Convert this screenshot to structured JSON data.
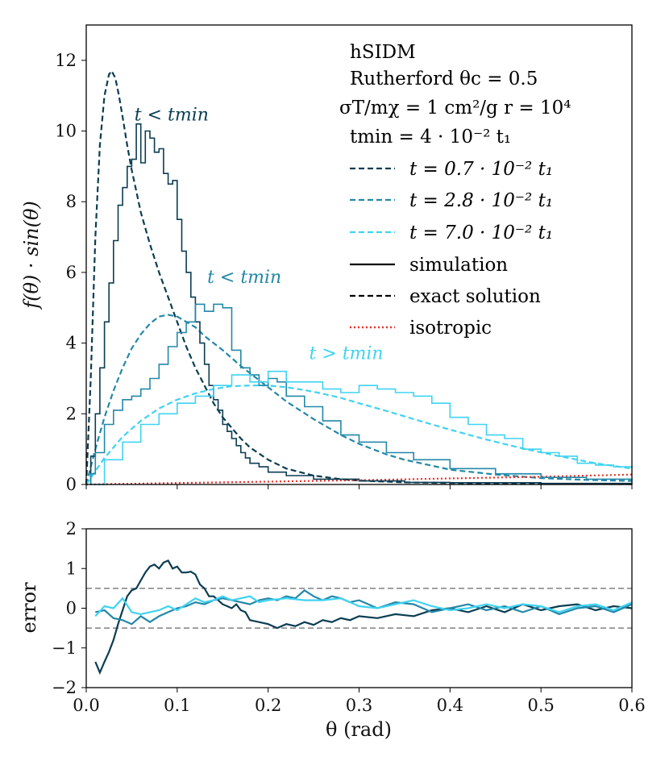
{
  "chart_data": [
    {
      "type": "line",
      "panel": "main",
      "title": "",
      "xlabel": "",
      "ylabel": "f(θ) · sin(θ)",
      "xlim": [
        0,
        0.6
      ],
      "ylim": [
        0,
        13
      ],
      "xticks": [
        0.0,
        0.1,
        0.2,
        0.3,
        0.4,
        0.5,
        0.6
      ],
      "yticks": [
        0,
        2,
        4,
        6,
        8,
        10,
        12
      ],
      "ytick_labels": [
        "0",
        "2",
        "4",
        "6",
        "8",
        "10",
        "12"
      ],
      "colors": {
        "dark": "#0b3d52",
        "mid": "#2388a8",
        "light": "#3fd3f2",
        "isotropic": "#e8312a"
      },
      "legend": {
        "title_lines": [
          "hSIDM",
          "Rutherford   θc = 0.5",
          "σT/mχ = 1 cm²/g   r = 10⁴",
          "tmin = 4 · 10⁻² t₁"
        ],
        "entries": [
          {
            "label": "t = 0.7 · 10⁻² t₁",
            "style": "dashed",
            "color": "#0b3d52"
          },
          {
            "label": "t = 2.8 · 10⁻² t₁",
            "style": "dashed",
            "color": "#2388a8"
          },
          {
            "label": "t = 7.0 · 10⁻² t₁",
            "style": "dashed",
            "color": "#3fd3f2"
          },
          {
            "label": "simulation",
            "style": "solid",
            "color": "#000000"
          },
          {
            "label": "exact solution",
            "style": "dashed",
            "color": "#000000"
          },
          {
            "label": "isotropic",
            "style": "dotted",
            "color": "#e8312a"
          }
        ]
      },
      "annotations": [
        {
          "text": "t < tmin",
          "x": 0.053,
          "y": 10.3,
          "color": "#0b3d52"
        },
        {
          "text": "t < tmin",
          "x": 0.133,
          "y": 5.7,
          "color": "#2388a8"
        },
        {
          "text": "t > tmin",
          "x": 0.245,
          "y": 3.55,
          "color": "#3fd3f2"
        }
      ],
      "series": [
        {
          "name": "exact t=0.7e-2 t1",
          "kind": "dashed",
          "color": "#0b3d52",
          "x": [
            0.0,
            0.005,
            0.01,
            0.015,
            0.02,
            0.025,
            0.028,
            0.032,
            0.036,
            0.04,
            0.045,
            0.05,
            0.055,
            0.06,
            0.07,
            0.08,
            0.09,
            0.1,
            0.11,
            0.12,
            0.13,
            0.14,
            0.15,
            0.16,
            0.17,
            0.18,
            0.2,
            0.22,
            0.25,
            0.28,
            0.3,
            0.35,
            0.4,
            0.45,
            0.5,
            0.55,
            0.6
          ],
          "y": [
            0.0,
            3.0,
            7.0,
            9.6,
            11.0,
            11.6,
            11.7,
            11.5,
            11.0,
            10.4,
            9.6,
            8.9,
            8.3,
            7.7,
            6.8,
            6.0,
            5.3,
            4.6,
            3.9,
            3.3,
            2.8,
            2.3,
            1.9,
            1.6,
            1.3,
            1.05,
            0.7,
            0.45,
            0.25,
            0.15,
            0.11,
            0.06,
            0.04,
            0.03,
            0.02,
            0.015,
            0.01
          ]
        },
        {
          "name": "exact t=2.8e-2 t1",
          "kind": "dashed",
          "color": "#2388a8",
          "x": [
            0.0,
            0.01,
            0.02,
            0.03,
            0.04,
            0.05,
            0.06,
            0.07,
            0.08,
            0.09,
            0.1,
            0.11,
            0.12,
            0.13,
            0.15,
            0.17,
            0.2,
            0.22,
            0.25,
            0.28,
            0.3,
            0.33,
            0.35,
            0.4,
            0.45,
            0.5,
            0.55,
            0.6
          ],
          "y": [
            0.0,
            1.0,
            1.9,
            2.65,
            3.3,
            3.85,
            4.25,
            4.55,
            4.75,
            4.8,
            4.75,
            4.6,
            4.45,
            4.2,
            3.8,
            3.35,
            2.75,
            2.35,
            1.85,
            1.4,
            1.15,
            0.85,
            0.7,
            0.42,
            0.28,
            0.18,
            0.13,
            0.1
          ]
        },
        {
          "name": "exact t=7.0e-2 t1",
          "kind": "dashed",
          "color": "#3fd3f2",
          "x": [
            0.0,
            0.02,
            0.04,
            0.06,
            0.08,
            0.1,
            0.12,
            0.14,
            0.16,
            0.18,
            0.2,
            0.22,
            0.24,
            0.26,
            0.28,
            0.3,
            0.33,
            0.36,
            0.4,
            0.44,
            0.48,
            0.52,
            0.56,
            0.6
          ],
          "y": [
            0.0,
            0.75,
            1.35,
            1.8,
            2.15,
            2.4,
            2.58,
            2.7,
            2.78,
            2.8,
            2.8,
            2.75,
            2.67,
            2.57,
            2.45,
            2.3,
            2.08,
            1.85,
            1.55,
            1.27,
            1.02,
            0.8,
            0.6,
            0.45
          ]
        },
        {
          "name": "isotropic",
          "kind": "dotted",
          "color": "#e8312a",
          "x": [
            0.0,
            0.1,
            0.2,
            0.3,
            0.4,
            0.5,
            0.6
          ],
          "y": [
            0.0,
            0.04,
            0.08,
            0.12,
            0.17,
            0.22,
            0.28
          ]
        },
        {
          "name": "simulation t=0.7e-2 t1",
          "kind": "step",
          "color": "#0b3d52",
          "x": [
            0.005,
            0.01,
            0.015,
            0.02,
            0.025,
            0.03,
            0.035,
            0.04,
            0.045,
            0.05,
            0.055,
            0.06,
            0.065,
            0.07,
            0.075,
            0.08,
            0.085,
            0.09,
            0.095,
            0.1,
            0.105,
            0.11,
            0.115,
            0.12,
            0.125,
            0.13,
            0.135,
            0.14,
            0.145,
            0.15,
            0.155,
            0.16,
            0.165,
            0.17,
            0.175,
            0.18,
            0.19,
            0.2,
            0.22,
            0.25,
            0.3,
            0.35,
            0.4,
            0.5,
            0.6
          ],
          "y": [
            0.8,
            2.0,
            3.3,
            4.6,
            5.7,
            6.9,
            7.9,
            8.4,
            9.0,
            9.2,
            10.2,
            9.1,
            10.0,
            9.8,
            9.4,
            9.5,
            8.8,
            8.5,
            8.6,
            7.5,
            6.6,
            6.0,
            5.3,
            4.6,
            4.0,
            3.4,
            2.8,
            2.4,
            2.1,
            1.7,
            1.5,
            1.3,
            1.1,
            0.9,
            0.75,
            0.6,
            0.5,
            0.35,
            0.25,
            0.15,
            0.1,
            0.06,
            0.05,
            0.03,
            0.02
          ]
        },
        {
          "name": "simulation t=2.8e-2 t1",
          "kind": "step",
          "color": "#2388a8",
          "x": [
            0.005,
            0.01,
            0.02,
            0.03,
            0.04,
            0.05,
            0.06,
            0.07,
            0.08,
            0.09,
            0.1,
            0.11,
            0.12,
            0.13,
            0.14,
            0.15,
            0.16,
            0.17,
            0.18,
            0.19,
            0.2,
            0.21,
            0.22,
            0.24,
            0.26,
            0.28,
            0.3,
            0.33,
            0.36,
            0.4,
            0.45,
            0.5,
            0.55,
            0.6
          ],
          "y": [
            0.3,
            0.9,
            1.7,
            2.1,
            2.4,
            2.5,
            2.7,
            3.0,
            3.4,
            3.9,
            4.3,
            4.6,
            5.1,
            4.9,
            5.1,
            5.0,
            3.8,
            3.3,
            3.1,
            2.8,
            3.0,
            2.9,
            2.5,
            2.2,
            1.8,
            1.4,
            1.2,
            0.9,
            0.7,
            0.45,
            0.3,
            0.2,
            0.15,
            0.1
          ]
        },
        {
          "name": "simulation t=7.0e-2 t1",
          "kind": "step",
          "color": "#3fd3f2",
          "x": [
            0.005,
            0.02,
            0.04,
            0.06,
            0.08,
            0.1,
            0.12,
            0.14,
            0.16,
            0.18,
            0.2,
            0.22,
            0.24,
            0.26,
            0.28,
            0.3,
            0.32,
            0.34,
            0.36,
            0.38,
            0.4,
            0.42,
            0.44,
            0.46,
            0.48,
            0.5,
            0.52,
            0.54,
            0.56,
            0.58,
            0.6
          ],
          "y": [
            0.0,
            0.7,
            1.2,
            1.7,
            2.0,
            2.3,
            2.5,
            2.8,
            3.1,
            2.9,
            3.2,
            2.9,
            2.9,
            2.7,
            2.6,
            2.8,
            2.7,
            2.6,
            2.5,
            2.3,
            1.9,
            1.7,
            1.4,
            1.3,
            1.0,
            0.9,
            0.8,
            0.6,
            0.55,
            0.5,
            0.45
          ]
        }
      ]
    },
    {
      "type": "line",
      "panel": "error",
      "title": "",
      "xlabel": "θ (rad)",
      "ylabel": "error",
      "xlim": [
        0,
        0.6
      ],
      "ylim": [
        -2,
        2
      ],
      "xticks": [
        0.0,
        0.1,
        0.2,
        0.3,
        0.4,
        0.5,
        0.6
      ],
      "xtick_labels": [
        "0.0",
        "0.1",
        "0.2",
        "0.3",
        "0.4",
        "0.5",
        "0.6"
      ],
      "yticks": [
        -2,
        -1,
        0,
        1,
        2
      ],
      "ytick_labels": [
        "−2",
        "−1",
        "0",
        "1",
        "2"
      ],
      "reference_lines": [
        0.5,
        -0.5
      ],
      "reference_color": "#808080",
      "series": [
        {
          "name": "error t=0.7e-2 t1",
          "color": "#0b3d52",
          "x": [
            0.01,
            0.015,
            0.02,
            0.025,
            0.03,
            0.035,
            0.04,
            0.045,
            0.05,
            0.055,
            0.06,
            0.065,
            0.07,
            0.075,
            0.08,
            0.085,
            0.09,
            0.095,
            0.1,
            0.105,
            0.11,
            0.115,
            0.12,
            0.125,
            0.13,
            0.135,
            0.14,
            0.145,
            0.15,
            0.155,
            0.16,
            0.165,
            0.17,
            0.175,
            0.18,
            0.19,
            0.2,
            0.21,
            0.22,
            0.23,
            0.24,
            0.25,
            0.26,
            0.27,
            0.28,
            0.29,
            0.3,
            0.32,
            0.34,
            0.36,
            0.38,
            0.4,
            0.42,
            0.44,
            0.46,
            0.48,
            0.5,
            0.52,
            0.54,
            0.56,
            0.58,
            0.6
          ],
          "y": [
            -1.35,
            -1.62,
            -1.35,
            -1.1,
            -0.8,
            -0.4,
            -0.05,
            0.3,
            0.45,
            0.5,
            0.7,
            0.9,
            1.05,
            1.1,
            1.0,
            1.15,
            1.2,
            1.0,
            1.05,
            0.9,
            0.9,
            0.92,
            0.85,
            0.6,
            0.5,
            0.3,
            0.3,
            0.2,
            0.1,
            0.05,
            0.0,
            0.1,
            -0.05,
            -0.1,
            -0.3,
            -0.35,
            -0.4,
            -0.5,
            -0.4,
            -0.45,
            -0.35,
            -0.42,
            -0.3,
            -0.35,
            -0.25,
            -0.3,
            -0.2,
            -0.25,
            -0.15,
            -0.2,
            -0.05,
            0.0,
            -0.1,
            0.05,
            -0.1,
            0.1,
            -0.05,
            0.05,
            0.1,
            -0.05,
            0.05,
            0.0
          ]
        },
        {
          "name": "error t=2.8e-2 t1",
          "color": "#2388a8",
          "x": [
            0.01,
            0.02,
            0.03,
            0.04,
            0.05,
            0.06,
            0.07,
            0.08,
            0.09,
            0.1,
            0.11,
            0.12,
            0.13,
            0.14,
            0.15,
            0.16,
            0.17,
            0.18,
            0.19,
            0.2,
            0.21,
            0.22,
            0.23,
            0.24,
            0.25,
            0.26,
            0.27,
            0.28,
            0.29,
            0.3,
            0.32,
            0.34,
            0.36,
            0.38,
            0.4,
            0.42,
            0.44,
            0.46,
            0.48,
            0.5,
            0.52,
            0.54,
            0.56,
            0.58,
            0.6
          ],
          "y": [
            -0.1,
            -0.05,
            -0.25,
            -0.3,
            -0.4,
            -0.2,
            -0.35,
            -0.2,
            -0.1,
            0.0,
            0.05,
            0.15,
            0.1,
            0.2,
            0.25,
            0.2,
            0.15,
            0.1,
            0.2,
            0.25,
            0.2,
            0.3,
            0.25,
            0.45,
            0.3,
            0.2,
            0.3,
            0.25,
            0.15,
            0.2,
            0.0,
            0.15,
            0.1,
            -0.1,
            0.0,
            0.1,
            -0.05,
            0.05,
            -0.1,
            0.05,
            -0.15,
            0.0,
            0.05,
            -0.1,
            0.1
          ]
        },
        {
          "name": "error t=7.0e-2 t1",
          "color": "#3fd3f2",
          "x": [
            0.01,
            0.02,
            0.03,
            0.04,
            0.05,
            0.06,
            0.07,
            0.08,
            0.09,
            0.1,
            0.11,
            0.12,
            0.13,
            0.14,
            0.15,
            0.16,
            0.17,
            0.18,
            0.19,
            0.2,
            0.22,
            0.24,
            0.26,
            0.28,
            0.3,
            0.32,
            0.34,
            0.36,
            0.38,
            0.4,
            0.42,
            0.44,
            0.46,
            0.48,
            0.5,
            0.52,
            0.54,
            0.56,
            0.58,
            0.6
          ],
          "y": [
            -0.2,
            0.05,
            0.0,
            0.25,
            -0.1,
            -0.15,
            -0.1,
            -0.05,
            0.05,
            -0.05,
            0.1,
            0.25,
            0.15,
            0.2,
            0.3,
            0.2,
            0.25,
            0.3,
            0.15,
            0.2,
            0.25,
            0.2,
            0.2,
            0.25,
            0.05,
            0.0,
            0.1,
            0.2,
            0.05,
            -0.05,
            0.0,
            0.1,
            0.0,
            0.1,
            0.05,
            -0.1,
            0.05,
            0.1,
            -0.05,
            0.15
          ]
        }
      ]
    }
  ]
}
